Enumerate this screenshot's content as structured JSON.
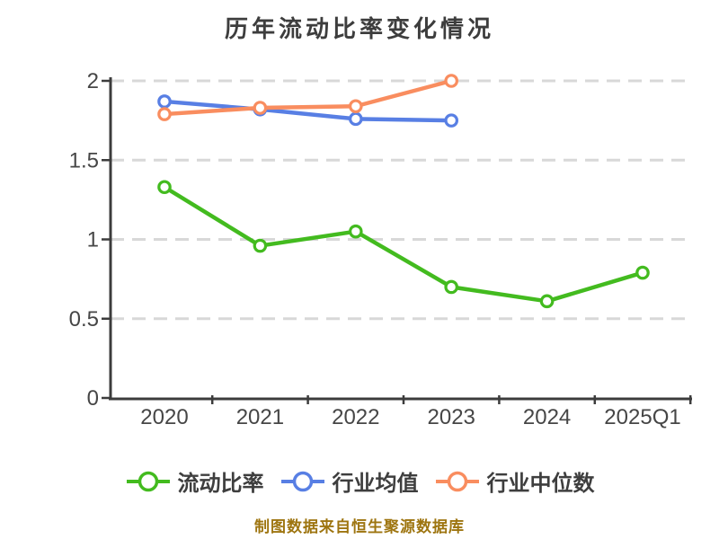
{
  "chart_data": {
    "type": "line",
    "title": "历年流动比率变化情况",
    "categories": [
      "2020",
      "2021",
      "2022",
      "2023",
      "2024",
      "2025Q1"
    ],
    "series": [
      {
        "name": "流动比率",
        "color": "#43bb1f",
        "values": [
          1.33,
          0.96,
          1.05,
          0.7,
          0.61,
          0.79
        ]
      },
      {
        "name": "行业均值",
        "color": "#587fe4",
        "values": [
          1.87,
          1.82,
          1.76,
          1.75,
          null,
          null
        ]
      },
      {
        "name": "行业中位数",
        "color": "#f98d5f",
        "values": [
          1.79,
          1.83,
          1.84,
          2.0,
          null,
          null
        ]
      }
    ],
    "ylim": [
      0,
      2
    ],
    "yticks": [
      0,
      0.5,
      1,
      1.5,
      2
    ],
    "grid": "horizontal-dashed",
    "legend_position": "bottom",
    "footer": "制图数据来自恒生聚源数据库"
  },
  "style_colors": {
    "axis": "#3c3c3c",
    "tick_label": "#464646",
    "gridline": "#d8d8d8",
    "title": "#3d3d3d",
    "footer": "#9e7510",
    "marker_fill": "#ffffff"
  }
}
